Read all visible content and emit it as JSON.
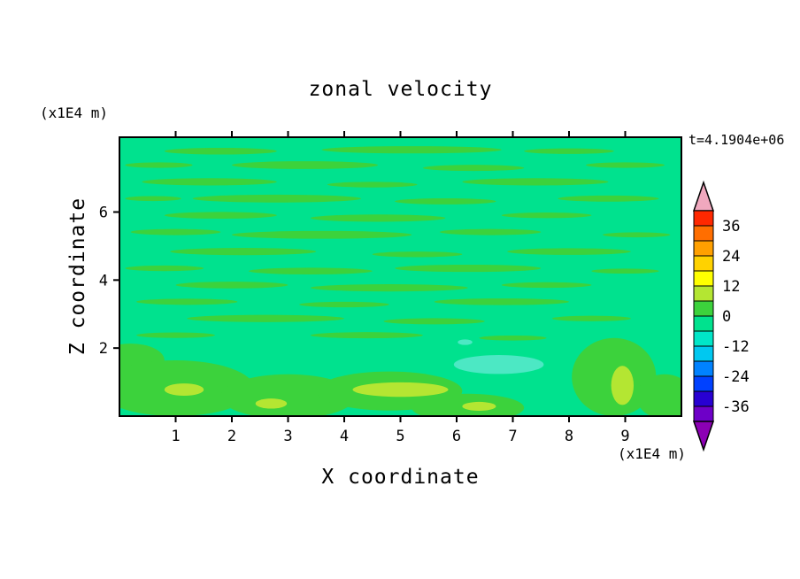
{
  "figure": {
    "background": "#FFFFFF"
  },
  "chart_data": {
    "type": "heatmap",
    "subtype": "filled-contour",
    "title": "zonal velocity",
    "xlabel": "X coordinate",
    "ylabel": "Z coordinate",
    "x_axis_unit": "(x1E4 m)",
    "y_axis_unit": "(x1E4 m)",
    "annotation_time": "t=4.1904e+06",
    "xlim": [
      0,
      10
    ],
    "ylim": [
      0,
      8.2
    ],
    "x_ticks": [
      1,
      2,
      3,
      4,
      5,
      6,
      7,
      8,
      9
    ],
    "y_ticks": [
      2,
      4,
      6
    ],
    "grid": false,
    "legend_position": "right-colorbar",
    "colorbar": {
      "labels": [
        36,
        24,
        12,
        0,
        -12,
        -24,
        -36
      ],
      "level_step": 6,
      "range": [
        -42,
        42
      ],
      "segments_top_to_bottom": [
        "#FF2800",
        "#FF6E00",
        "#FFA000",
        "#FFD200",
        "#FFFF00",
        "#B4E632",
        "#3CD23C",
        "#00E28E",
        "#00E6C8",
        "#00C8F0",
        "#0082FF",
        "#0041FF",
        "#2800D2",
        "#6E00C8"
      ],
      "over_color": "#F0A8BE",
      "under_color": "#8C00B4"
    },
    "field": {
      "background_color": "#00E28E",
      "palette": {
        "g": "#3CD23C",
        "y": "#B4E632",
        "t": "#4CE8C4"
      },
      "blobs": [
        [
          0.18,
          0.05,
          0.1,
          0.012,
          "g"
        ],
        [
          0.52,
          0.045,
          0.16,
          0.013,
          "g"
        ],
        [
          0.8,
          0.05,
          0.08,
          0.01,
          "g"
        ],
        [
          0.07,
          0.1,
          0.06,
          0.01,
          "g"
        ],
        [
          0.33,
          0.1,
          0.13,
          0.014,
          "g"
        ],
        [
          0.63,
          0.11,
          0.09,
          0.011,
          "g"
        ],
        [
          0.9,
          0.1,
          0.07,
          0.01,
          "g"
        ],
        [
          0.16,
          0.16,
          0.12,
          0.013,
          "g"
        ],
        [
          0.45,
          0.17,
          0.08,
          0.01,
          "g"
        ],
        [
          0.74,
          0.16,
          0.13,
          0.013,
          "g"
        ],
        [
          0.06,
          0.22,
          0.05,
          0.009,
          "g"
        ],
        [
          0.28,
          0.22,
          0.15,
          0.014,
          "g"
        ],
        [
          0.58,
          0.23,
          0.09,
          0.011,
          "g"
        ],
        [
          0.87,
          0.22,
          0.09,
          0.011,
          "g"
        ],
        [
          0.18,
          0.28,
          0.1,
          0.012,
          "g"
        ],
        [
          0.46,
          0.29,
          0.12,
          0.013,
          "g"
        ],
        [
          0.76,
          0.28,
          0.08,
          0.01,
          "g"
        ],
        [
          0.1,
          0.34,
          0.08,
          0.011,
          "g"
        ],
        [
          0.36,
          0.35,
          0.16,
          0.014,
          "g"
        ],
        [
          0.66,
          0.34,
          0.09,
          0.011,
          "g"
        ],
        [
          0.92,
          0.35,
          0.06,
          0.009,
          "g"
        ],
        [
          0.22,
          0.41,
          0.13,
          0.013,
          "g"
        ],
        [
          0.53,
          0.42,
          0.08,
          0.01,
          "g"
        ],
        [
          0.8,
          0.41,
          0.11,
          0.012,
          "g"
        ],
        [
          0.08,
          0.47,
          0.07,
          0.01,
          "g"
        ],
        [
          0.34,
          0.48,
          0.11,
          0.012,
          "g"
        ],
        [
          0.62,
          0.47,
          0.13,
          0.013,
          "g"
        ],
        [
          0.9,
          0.48,
          0.06,
          0.009,
          "g"
        ],
        [
          0.2,
          0.53,
          0.1,
          0.012,
          "g"
        ],
        [
          0.48,
          0.54,
          0.14,
          0.013,
          "g"
        ],
        [
          0.76,
          0.53,
          0.08,
          0.01,
          "g"
        ],
        [
          0.12,
          0.59,
          0.09,
          0.011,
          "g"
        ],
        [
          0.4,
          0.6,
          0.08,
          0.01,
          "g"
        ],
        [
          0.68,
          0.59,
          0.12,
          0.012,
          "g"
        ],
        [
          0.26,
          0.65,
          0.14,
          0.013,
          "g"
        ],
        [
          0.56,
          0.66,
          0.09,
          0.011,
          "g"
        ],
        [
          0.84,
          0.65,
          0.07,
          0.01,
          "g"
        ],
        [
          0.1,
          0.71,
          0.07,
          0.01,
          "g"
        ],
        [
          0.44,
          0.71,
          0.1,
          0.011,
          "g"
        ],
        [
          0.7,
          0.72,
          0.06,
          0.009,
          "g"
        ],
        [
          0.615,
          0.735,
          0.013,
          0.01,
          "t"
        ],
        [
          0.02,
          0.8,
          0.06,
          0.06,
          "g"
        ],
        [
          0.1,
          0.9,
          0.14,
          0.1,
          "g"
        ],
        [
          0.3,
          0.93,
          0.12,
          0.08,
          "g"
        ],
        [
          0.48,
          0.91,
          0.13,
          0.07,
          "g"
        ],
        [
          0.62,
          0.97,
          0.1,
          0.05,
          "g"
        ],
        [
          0.88,
          0.86,
          0.075,
          0.14,
          "g"
        ],
        [
          0.97,
          0.93,
          0.05,
          0.08,
          "g"
        ],
        [
          0.675,
          0.815,
          0.08,
          0.034,
          "t"
        ],
        [
          0.115,
          0.905,
          0.035,
          0.022,
          "y"
        ],
        [
          0.27,
          0.955,
          0.028,
          0.018,
          "y"
        ],
        [
          0.5,
          0.905,
          0.085,
          0.026,
          "y"
        ],
        [
          0.64,
          0.965,
          0.03,
          0.016,
          "y"
        ],
        [
          0.895,
          0.89,
          0.02,
          0.07,
          "y"
        ]
      ]
    }
  }
}
